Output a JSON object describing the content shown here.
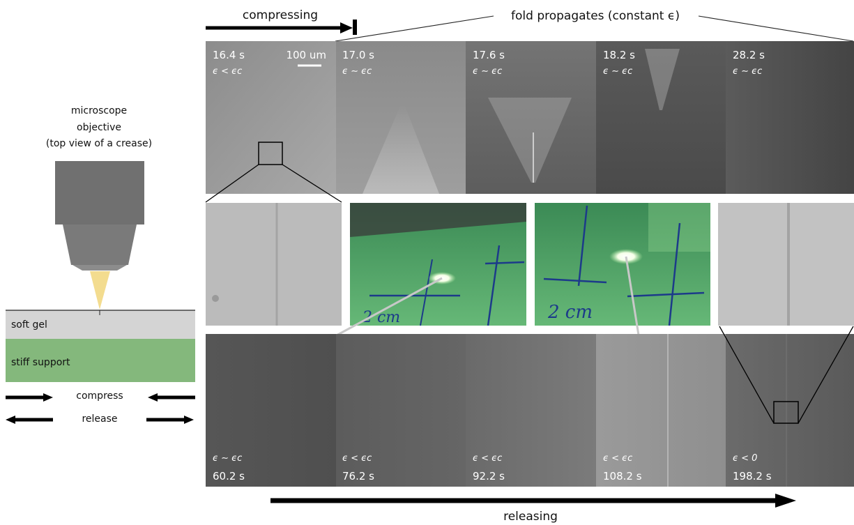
{
  "headers": {
    "compressing": "compressing",
    "fold_propagates": "fold propagates (constant ϵ)",
    "releasing": "releasing"
  },
  "scale_bar": "100 um",
  "top_frames": [
    {
      "time": "16.4 s",
      "condition": "ϵ < ϵc"
    },
    {
      "time": "17.0 s",
      "condition": "ϵ ∼ ϵc"
    },
    {
      "time": "17.6 s",
      "condition": "ϵ ∼ ϵc"
    },
    {
      "time": "18.2 s",
      "condition": "ϵ ∼ ϵc"
    },
    {
      "time": "28.2 s",
      "condition": "ϵ ∼ ϵc"
    }
  ],
  "bottom_frames": [
    {
      "time": "60.2 s",
      "condition": "ϵ ∼ ϵc"
    },
    {
      "time": "76.2 s",
      "condition": "ϵ < ϵc"
    },
    {
      "time": "92.2 s",
      "condition": "ϵ < ϵc"
    },
    {
      "time": "108.2 s",
      "condition": "ϵ < ϵc"
    },
    {
      "time": "198.2 s",
      "condition": "ϵ < 0"
    }
  ],
  "photo_labels": [
    "2 cm",
    "2 cm"
  ],
  "sidebar": {
    "objective_lines": [
      "microscope",
      "objective",
      "(top view of a crease)"
    ],
    "soft_gel": "soft gel",
    "stiff_support": "stiff support",
    "compress": "compress",
    "release": "release"
  },
  "colors": {
    "gel": "#d4d4d4",
    "support": "#84b87c",
    "objective": "#6f6f6f",
    "light_cone": "#f3dc8f",
    "photo_green": "#2f9a55",
    "arrow_gray": "#c8c8c8"
  }
}
